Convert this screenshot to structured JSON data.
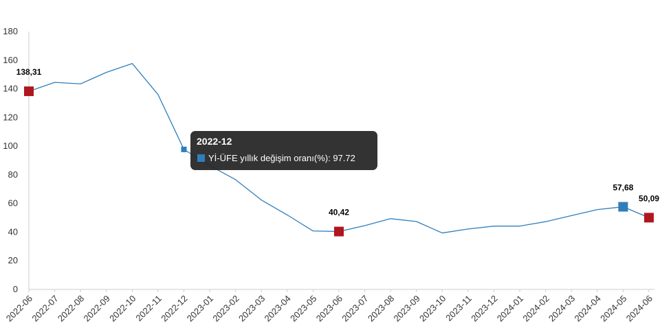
{
  "chart_data": {
    "type": "line",
    "x": [
      "2022-06",
      "2022-07",
      "2022-08",
      "2022-09",
      "2022-10",
      "2022-11",
      "2022-12",
      "2023-01",
      "2023-02",
      "2023-03",
      "2023-04",
      "2023-05",
      "2023-06",
      "2023-07",
      "2023-08",
      "2023-09",
      "2023-10",
      "2023-11",
      "2023-12",
      "2024-01",
      "2024-02",
      "2024-03",
      "2024-04",
      "2024-05",
      "2024-06"
    ],
    "series": [
      {
        "name": "Yİ-ÜFE yıllık değişim oranı(%)",
        "values": [
          138.31,
          144.5,
          143.5,
          151.5,
          157.7,
          136.0,
          97.72,
          86.5,
          76.6,
          62.4,
          52.0,
          40.8,
          40.42,
          44.5,
          49.4,
          47.4,
          39.4,
          42.2,
          44.2,
          44.2,
          47.3,
          51.5,
          55.7,
          57.68,
          50.09
        ],
        "color": "#2f7ebc"
      }
    ],
    "highlighted_points": [
      {
        "x": "2022-06",
        "label": "138,31",
        "color": "#b0161d"
      },
      {
        "x": "2023-06",
        "label": "40,42",
        "color": "#b0161d"
      },
      {
        "x": "2024-05",
        "label": "57,68",
        "color": "#2f7ebc"
      },
      {
        "x": "2024-06",
        "label": "50,09",
        "color": "#b0161d"
      }
    ],
    "yticks": [
      "0",
      "20",
      "40",
      "60",
      "80",
      "100",
      "120",
      "140",
      "160",
      "180"
    ],
    "ylim": [
      0,
      180
    ],
    "grid": false,
    "title": "",
    "xlabel": "",
    "ylabel": "",
    "tooltip": {
      "x": "2022-12",
      "title": "2022-12",
      "text": "Yİ-ÜFE yıllık değişim oranı(%): 97.72",
      "marker_color": "#2f7ebc"
    }
  }
}
